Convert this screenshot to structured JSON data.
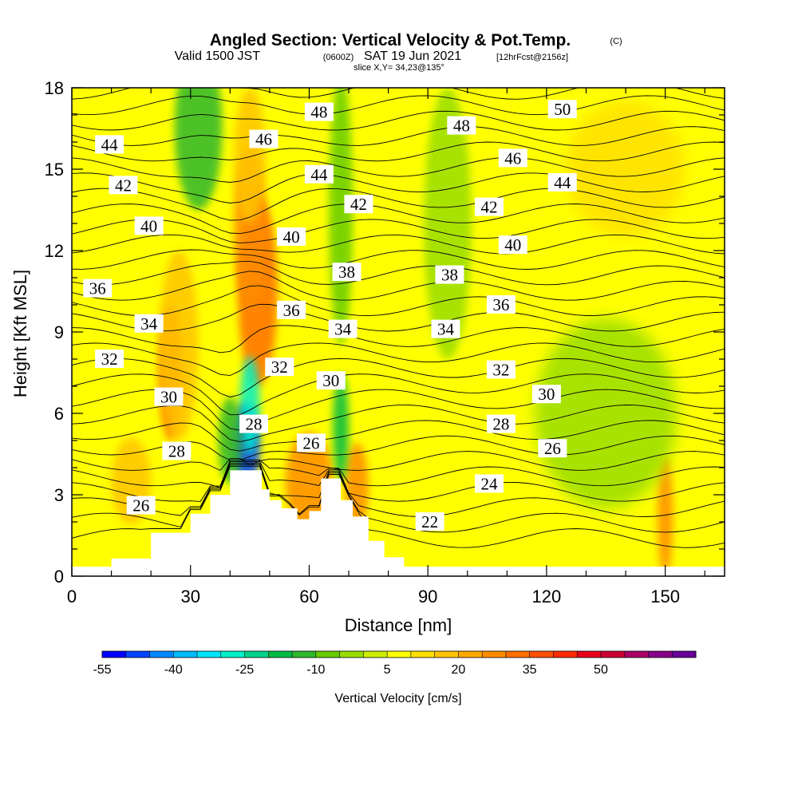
{
  "header": {
    "title": "Angled Section: Vertical Velocity & Pot.Temp.",
    "title_suffix": "(C)",
    "valid_prefix": "Valid 1500 JST",
    "valid_utc": "(0600Z)",
    "valid_date": "SAT 19 Jun 2021",
    "forecast": "[12hrFcst@2156z]",
    "slice": "slice X,Y= 34,23@135°"
  },
  "chart_data": {
    "type": "heatmap",
    "xlabel": "Distance [nm]",
    "ylabel": "Height [Kft MSL]",
    "xlim": [
      0,
      165
    ],
    "ylim": [
      0,
      18
    ],
    "x_ticks": [
      0,
      30,
      60,
      90,
      120,
      150
    ],
    "y_ticks": [
      0,
      3,
      6,
      9,
      12,
      15,
      18
    ],
    "grid": false,
    "colorbar": {
      "label": "Vertical Velocity [cm/s]",
      "placement": "bottom",
      "tick_labels": [
        "-55",
        "-40",
        "-25",
        "-10",
        "5",
        "20",
        "35",
        "50"
      ],
      "bin_min": -55,
      "bin_step": 5,
      "colors": [
        "#0000ff",
        "#0044ff",
        "#0088ff",
        "#00bbff",
        "#00e5ff",
        "#00f0c8",
        "#00d28a",
        "#00bb44",
        "#2eb82e",
        "#66cc00",
        "#99dd00",
        "#ccee00",
        "#ffff00",
        "#ffe000",
        "#ffc400",
        "#ffa800",
        "#ff8c00",
        "#ff6e00",
        "#ff5000",
        "#ff2a00",
        "#e8001a",
        "#cc0033",
        "#aa0066",
        "#880088",
        "#660099"
      ]
    },
    "terrain_kft": [
      [
        0,
        0.35
      ],
      [
        10,
        0.35
      ],
      [
        10,
        0.65
      ],
      [
        20,
        0.65
      ],
      [
        20,
        1.6
      ],
      [
        30,
        1.6
      ],
      [
        30,
        2.3
      ],
      [
        35,
        2.3
      ],
      [
        35,
        3.0
      ],
      [
        40,
        3.0
      ],
      [
        40,
        3.9
      ],
      [
        48,
        3.9
      ],
      [
        48,
        3.2
      ],
      [
        50,
        3.2
      ],
      [
        50,
        2.8
      ],
      [
        53,
        2.8
      ],
      [
        53,
        2.5
      ],
      [
        57,
        2.5
      ],
      [
        57,
        2.1
      ],
      [
        60,
        2.1
      ],
      [
        60,
        2.4
      ],
      [
        63,
        2.4
      ],
      [
        63,
        3.6
      ],
      [
        68,
        3.6
      ],
      [
        68,
        2.8
      ],
      [
        71,
        2.8
      ],
      [
        71,
        2.2
      ],
      [
        75,
        2.2
      ],
      [
        75,
        1.3
      ],
      [
        79,
        1.3
      ],
      [
        79,
        0.7
      ],
      [
        84,
        0.7
      ],
      [
        84,
        0.35
      ],
      [
        165,
        0.35
      ]
    ],
    "isentropes": [
      {
        "value": "22",
        "label_x": 90.5,
        "label_y": 2.0
      },
      {
        "value": "24",
        "label_x": 105.5,
        "label_y": 3.4
      },
      {
        "value": "26",
        "label_x": 17.5,
        "label_y": 2.6
      },
      {
        "value": "26",
        "label_x": 60.5,
        "label_y": 4.9
      },
      {
        "value": "26",
        "label_x": 121.5,
        "label_y": 4.7
      },
      {
        "value": "28",
        "label_x": 26.5,
        "label_y": 4.6
      },
      {
        "value": "28",
        "label_x": 46.0,
        "label_y": 5.6
      },
      {
        "value": "28",
        "label_x": 108.5,
        "label_y": 5.6
      },
      {
        "value": "30",
        "label_x": 24.5,
        "label_y": 6.6
      },
      {
        "value": "30",
        "label_x": 65.5,
        "label_y": 7.2
      },
      {
        "value": "30",
        "label_x": 120.0,
        "label_y": 6.7
      },
      {
        "value": "32",
        "label_x": 9.5,
        "label_y": 8.0
      },
      {
        "value": "32",
        "label_x": 52.5,
        "label_y": 7.7
      },
      {
        "value": "32",
        "label_x": 108.5,
        "label_y": 7.6
      },
      {
        "value": "34",
        "label_x": 19.5,
        "label_y": 9.3
      },
      {
        "value": "34",
        "label_x": 68.5,
        "label_y": 9.1
      },
      {
        "value": "34",
        "label_x": 94.5,
        "label_y": 9.1
      },
      {
        "value": "36",
        "label_x": 6.5,
        "label_y": 10.6
      },
      {
        "value": "36",
        "label_x": 55.5,
        "label_y": 9.8
      },
      {
        "value": "36",
        "label_x": 108.5,
        "label_y": 10.0
      },
      {
        "value": "38",
        "label_x": 69.5,
        "label_y": 11.2
      },
      {
        "value": "38",
        "label_x": 95.5,
        "label_y": 11.1
      },
      {
        "value": "40",
        "label_x": 19.5,
        "label_y": 12.9
      },
      {
        "value": "40",
        "label_x": 55.5,
        "label_y": 12.5
      },
      {
        "value": "40",
        "label_x": 111.5,
        "label_y": 12.2
      },
      {
        "value": "42",
        "label_x": 13.0,
        "label_y": 14.4
      },
      {
        "value": "42",
        "label_x": 72.5,
        "label_y": 13.7
      },
      {
        "value": "42",
        "label_x": 105.5,
        "label_y": 13.6
      },
      {
        "value": "44",
        "label_x": 9.5,
        "label_y": 15.9
      },
      {
        "value": "44",
        "label_x": 62.5,
        "label_y": 14.8
      },
      {
        "value": "44",
        "label_x": 124.0,
        "label_y": 14.5
      },
      {
        "value": "46",
        "label_x": 48.5,
        "label_y": 16.1
      },
      {
        "value": "46",
        "label_x": 111.5,
        "label_y": 15.4
      },
      {
        "value": "48",
        "label_x": 62.5,
        "label_y": 17.1
      },
      {
        "value": "48",
        "label_x": 98.5,
        "label_y": 16.6
      },
      {
        "value": "50",
        "label_x": 124.0,
        "label_y": 17.2
      }
    ],
    "velocity_features": [
      {
        "cx": 47,
        "cy": 10.5,
        "rx": 5,
        "ry": 3.5,
        "value": 33
      },
      {
        "cx": 45,
        "cy": 12.8,
        "rx": 4,
        "ry": 3,
        "value": 28
      },
      {
        "cx": 45,
        "cy": 15.5,
        "rx": 4,
        "ry": 2.5,
        "value": 18
      },
      {
        "cx": 44,
        "cy": 4.8,
        "rx": 3.5,
        "ry": 1.6,
        "value": -48
      },
      {
        "cx": 45,
        "cy": 6.3,
        "rx": 2.5,
        "ry": 1.8,
        "value": -30
      },
      {
        "cx": 40,
        "cy": 5.0,
        "rx": 3,
        "ry": 1.6,
        "value": -15
      },
      {
        "cx": 25,
        "cy": 7.5,
        "rx": 3,
        "ry": 2.5,
        "value": 33
      },
      {
        "cx": 27,
        "cy": 8.5,
        "rx": 5,
        "ry": 3.5,
        "value": 15
      },
      {
        "cx": 32,
        "cy": 16.5,
        "rx": 6,
        "ry": 3,
        "value": -15
      },
      {
        "cx": 60,
        "cy": 3.5,
        "rx": 6,
        "ry": 1.8,
        "value": 25
      },
      {
        "cx": 72,
        "cy": 3.3,
        "rx": 3,
        "ry": 1.6,
        "value": 25
      },
      {
        "cx": 68,
        "cy": 5.5,
        "rx": 2,
        "ry": 2.0,
        "value": -20
      },
      {
        "cx": 68,
        "cy": 13.5,
        "rx": 3,
        "ry": 5.0,
        "value": -8
      },
      {
        "cx": 150,
        "cy": 2.2,
        "rx": 2,
        "ry": 2.2,
        "value": 28
      },
      {
        "cx": 15,
        "cy": 3.5,
        "rx": 5,
        "ry": 1.6,
        "value": 15
      },
      {
        "cx": 135,
        "cy": 6.0,
        "rx": 18,
        "ry": 3.5,
        "value": -5
      },
      {
        "cx": 95,
        "cy": 13.0,
        "rx": 6,
        "ry": 5.0,
        "value": -5
      },
      {
        "cx": 140,
        "cy": 15.0,
        "rx": 15,
        "ry": 2.5,
        "value": 13
      }
    ]
  }
}
